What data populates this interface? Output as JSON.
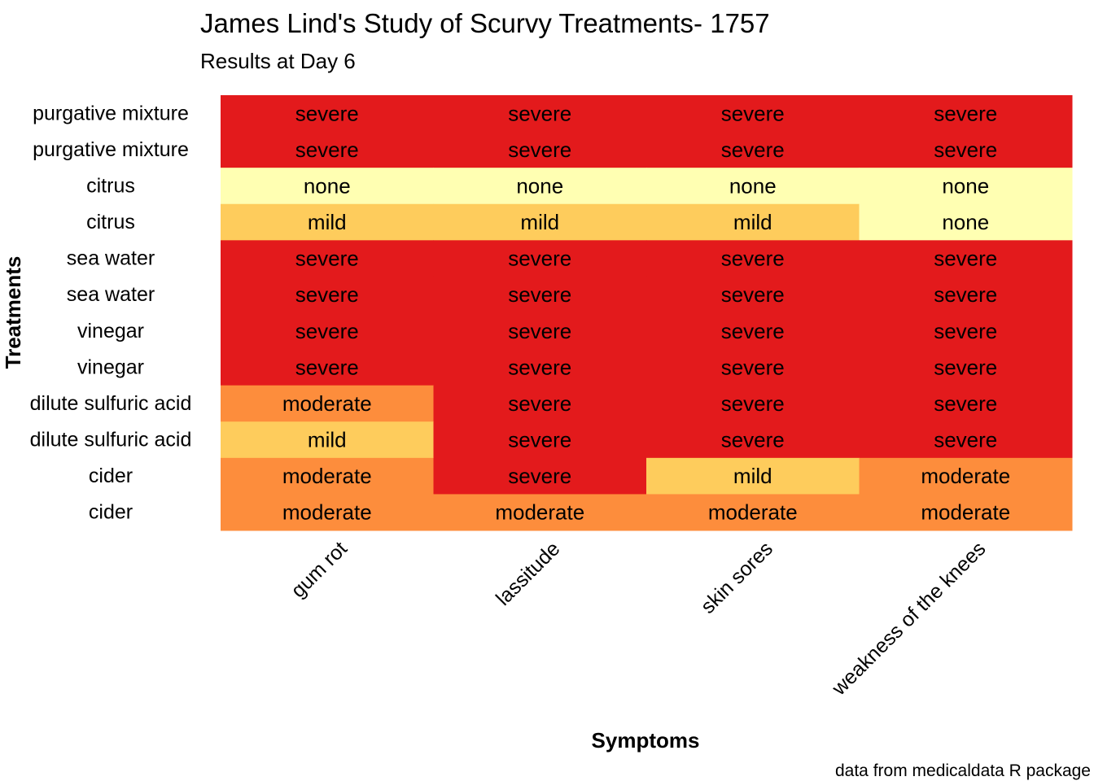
{
  "chart_data": {
    "type": "heatmap",
    "title": "James Lind's Study of Scurvy Treatments- 1757",
    "subtitle": "Results at Day 6",
    "xlabel": "Symptoms",
    "ylabel": "Treatments",
    "caption": "data from medicaldata R package",
    "x": [
      "gum rot",
      "lassitude",
      "skin sores",
      "weakness of the knees"
    ],
    "y": [
      "purgative mixture",
      "purgative mixture",
      "citrus",
      "citrus",
      "sea water",
      "sea water",
      "vinegar",
      "vinegar",
      "dilute sulfuric acid",
      "dilute sulfuric acid",
      "cider",
      "cider"
    ],
    "values": [
      [
        "severe",
        "severe",
        "severe",
        "severe"
      ],
      [
        "severe",
        "severe",
        "severe",
        "severe"
      ],
      [
        "none",
        "none",
        "none",
        "none"
      ],
      [
        "mild",
        "mild",
        "mild",
        "none"
      ],
      [
        "severe",
        "severe",
        "severe",
        "severe"
      ],
      [
        "severe",
        "severe",
        "severe",
        "severe"
      ],
      [
        "severe",
        "severe",
        "severe",
        "severe"
      ],
      [
        "severe",
        "severe",
        "severe",
        "severe"
      ],
      [
        "moderate",
        "severe",
        "severe",
        "severe"
      ],
      [
        "mild",
        "severe",
        "severe",
        "severe"
      ],
      [
        "moderate",
        "severe",
        "mild",
        "moderate"
      ],
      [
        "moderate",
        "moderate",
        "moderate",
        "moderate"
      ]
    ],
    "color_scale": {
      "none": "#FFFFB2",
      "mild": "#FECC5C",
      "moderate": "#FD8D3C",
      "severe": "#E31A1C"
    },
    "legend": "none",
    "grid": false
  }
}
